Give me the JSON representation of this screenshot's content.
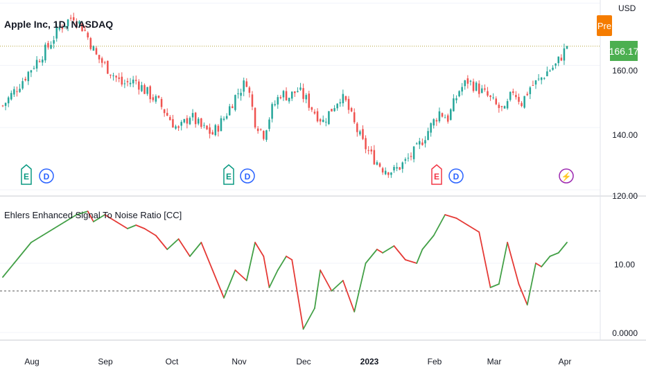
{
  "header": {
    "title": "Apple Inc, 1D, NASDAQ",
    "currency": "USD",
    "pre_badge": "Pre",
    "price_label": "166.17"
  },
  "indicator": {
    "title": "Ehlers Enhanced Signal To Noise Ratio [CC]"
  },
  "colors": {
    "up": "#26a69a",
    "down": "#ef5350",
    "line_up": "#43a047",
    "line_down": "#e53935",
    "pre_badge": "#f57c00",
    "price_label": "#4caf50",
    "price_line": "#b5a23a"
  },
  "price_axis": {
    "ticks": [
      "160.00",
      "140.00",
      "120.00"
    ]
  },
  "indicator_axis": {
    "ticks": [
      "10.00",
      "0.0000"
    ]
  },
  "time_axis": {
    "labels": [
      "Aug",
      "Sep",
      "Oct",
      "Nov",
      "Dec",
      "2023",
      "Feb",
      "Mar",
      "Apr"
    ]
  },
  "events": [
    {
      "type": "earnings",
      "label": "E",
      "style": "green"
    },
    {
      "type": "dividend",
      "label": "D",
      "style": "blue"
    },
    {
      "type": "earnings",
      "label": "E",
      "style": "green"
    },
    {
      "type": "dividend",
      "label": "D",
      "style": "blue"
    },
    {
      "type": "earnings",
      "label": "E",
      "style": "red"
    },
    {
      "type": "dividend",
      "label": "D",
      "style": "blue"
    },
    {
      "type": "split",
      "label": "⚡",
      "style": "purple"
    }
  ],
  "chart_data": [
    {
      "type": "candlestick",
      "title": "Apple Inc, 1D, NASDAQ",
      "ylabel": "USD",
      "ylim": [
        118,
        181
      ],
      "last_price": 166.17,
      "price_anchors": [
        [
          0,
          147
        ],
        [
          6,
          154
        ],
        [
          10,
          159
        ],
        [
          16,
          166
        ],
        [
          20,
          172
        ],
        [
          25,
          176
        ],
        [
          29,
          171
        ],
        [
          33,
          163
        ],
        [
          38,
          158
        ],
        [
          42,
          154
        ],
        [
          47,
          155
        ],
        [
          50,
          152
        ],
        [
          55,
          148
        ],
        [
          58,
          144
        ],
        [
          62,
          139
        ],
        [
          66,
          144
        ],
        [
          70,
          140
        ],
        [
          74,
          138
        ],
        [
          78,
          143
        ],
        [
          82,
          150
        ],
        [
          86,
          155
        ],
        [
          89,
          142
        ],
        [
          92,
          138
        ],
        [
          95,
          146
        ],
        [
          98,
          151
        ],
        [
          101,
          150
        ],
        [
          104,
          152
        ],
        [
          107,
          149
        ],
        [
          110,
          145
        ],
        [
          113,
          142
        ],
        [
          116,
          146
        ],
        [
          119,
          150
        ],
        [
          121,
          148
        ],
        [
          124,
          141
        ],
        [
          127,
          135
        ],
        [
          130,
          131
        ],
        [
          134,
          127
        ],
        [
          138,
          126
        ],
        [
          142,
          129
        ],
        [
          146,
          133
        ],
        [
          150,
          139
        ],
        [
          154,
          145
        ],
        [
          157,
          143
        ],
        [
          161,
          152
        ],
        [
          164,
          155
        ],
        [
          167,
          153
        ],
        [
          171,
          150
        ],
        [
          174,
          147
        ],
        [
          177,
          145
        ],
        [
          180,
          152
        ],
        [
          183,
          148
        ],
        [
          186,
          153
        ],
        [
          189,
          155
        ],
        [
          192,
          158
        ],
        [
          195,
          160
        ],
        [
          199,
          166
        ]
      ]
    },
    {
      "type": "line",
      "title": "Ehlers Enhanced Signal To Noise Ratio [CC]",
      "ylim": [
        -1,
        19
      ],
      "reference_line": 6,
      "x": [
        0,
        4,
        6,
        10,
        14,
        18,
        22,
        26,
        30,
        32,
        36,
        40,
        44,
        47,
        50,
        54,
        58,
        62,
        66,
        70,
        74,
        78,
        82,
        86,
        89,
        92,
        94,
        97,
        100,
        102,
        106,
        110,
        112,
        116,
        120,
        124,
        128,
        132,
        134,
        138,
        142,
        146,
        148,
        152,
        156,
        160,
        164,
        168,
        172,
        175,
        178,
        182,
        185,
        188,
        190,
        193,
        196,
        199
      ],
      "values": [
        8,
        10,
        11,
        13,
        14,
        15,
        16,
        17,
        17.5,
        16,
        17,
        16,
        15,
        15.5,
        15,
        14,
        12,
        13.5,
        11,
        13,
        9,
        5,
        9,
        7.5,
        13,
        11,
        6.5,
        9,
        11,
        10.5,
        0.5,
        3.5,
        9,
        6,
        7.5,
        3,
        10,
        12,
        11.5,
        12.5,
        10.5,
        10,
        12,
        14,
        17,
        16.5,
        15.5,
        14.5,
        6.5,
        7,
        13,
        7,
        4,
        10,
        9.5,
        11,
        11.5,
        13
      ]
    }
  ]
}
